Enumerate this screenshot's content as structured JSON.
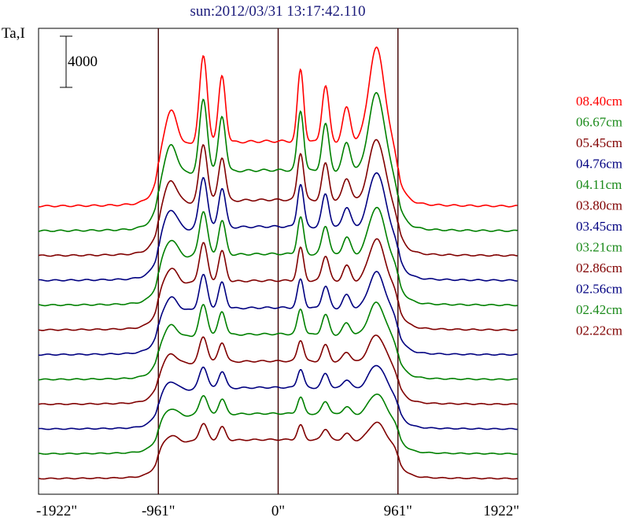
{
  "chart_data": {
    "type": "line",
    "title": "sun:2012/03/31 13:17:42.110",
    "ylabel": "Ta,I",
    "xlabel": "",
    "x_ticks": [
      "-1922\"",
      "-961\"",
      "0\"",
      "961\"",
      "1922\""
    ],
    "x_tick_values": [
      -1922,
      -961,
      0,
      961,
      1922
    ],
    "xlim": [
      -1922,
      1922
    ],
    "vertical_lines_at": [
      -961,
      0,
      961
    ],
    "scale_bar": {
      "label": "4000",
      "value": 4000
    },
    "grid": false,
    "legend_position": "right",
    "series": [
      {
        "name": "08.40cm",
        "color": "#ff0000",
        "peak_scale": 1.0
      },
      {
        "name": "06.67cm",
        "color": "#008000",
        "peak_scale": 0.87
      },
      {
        "name": "05.45cm",
        "color": "#800000",
        "peak_scale": 0.72
      },
      {
        "name": "04.76cm",
        "color": "#000080",
        "peak_scale": 0.66
      },
      {
        "name": "04.11cm",
        "color": "#008000",
        "peak_scale": 0.58
      },
      {
        "name": "03.80cm",
        "color": "#800000",
        "peak_scale": 0.52
      },
      {
        "name": "03.45cm",
        "color": "#000080",
        "peak_scale": 0.45
      },
      {
        "name": "03.21cm",
        "color": "#008000",
        "peak_scale": 0.4
      },
      {
        "name": "02.86cm",
        "color": "#800000",
        "peak_scale": 0.33
      },
      {
        "name": "02.56cm",
        "color": "#000080",
        "peak_scale": 0.28
      },
      {
        "name": "02.42cm",
        "color": "#008000",
        "peak_scale": 0.24
      },
      {
        "name": "02.22cm",
        "color": "#800000",
        "peak_scale": 0.2
      }
    ]
  }
}
